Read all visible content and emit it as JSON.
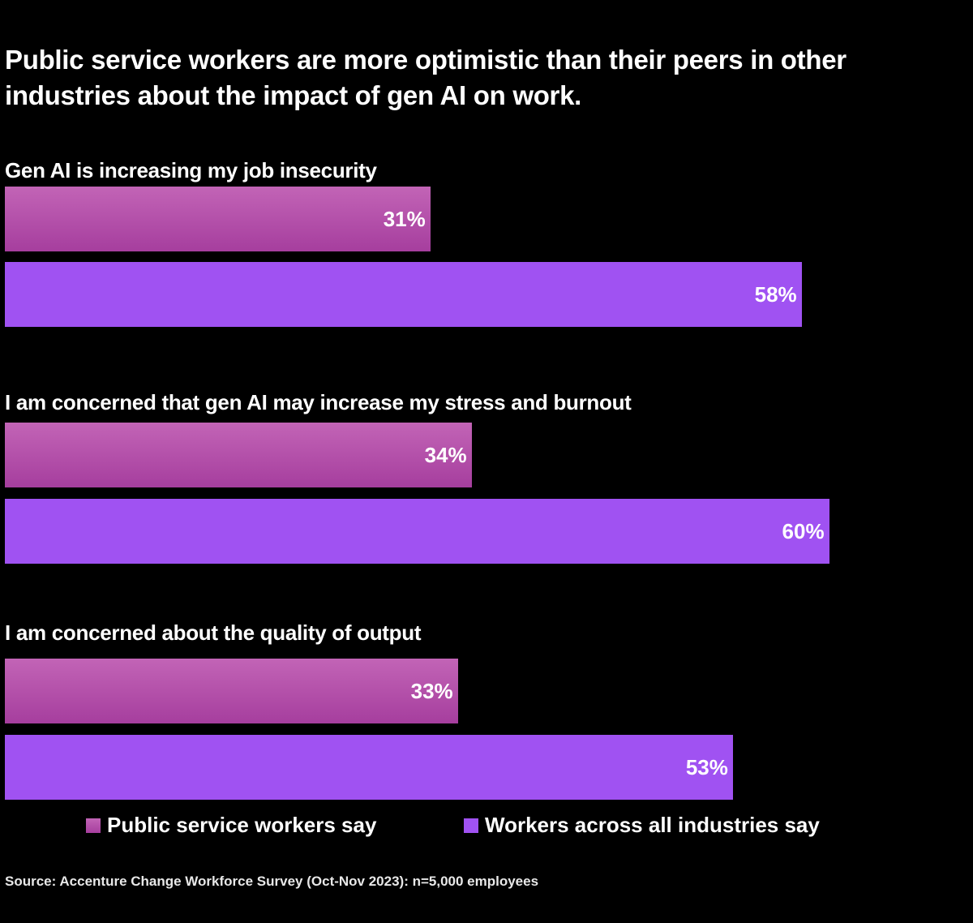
{
  "chart_data": {
    "type": "bar",
    "orientation": "horizontal",
    "title": "Public service workers are more optimistic than their peers in other industries about the impact of gen AI on work.",
    "categories": [
      "Gen AI is increasing my job insecurity",
      "I am concerned that gen AI may increase my stress and burnout",
      "I am concerned about the quality of output"
    ],
    "series": [
      {
        "name": "Public service workers say",
        "values": [
          31,
          34,
          33
        ],
        "labels": [
          "31%",
          "34%",
          "33%"
        ],
        "color": "#b44eaa"
      },
      {
        "name": "Workers across all industries say",
        "values": [
          58,
          60,
          53
        ],
        "labels": [
          "58%",
          "60%",
          "53%"
        ],
        "color": "#a052f2"
      }
    ],
    "xlim": [
      0,
      100
    ],
    "grid": false,
    "legend": "bottom",
    "source": "Source: Accenture Change Workforce Survey (Oct-Nov 2023): n=5,000 employees"
  }
}
